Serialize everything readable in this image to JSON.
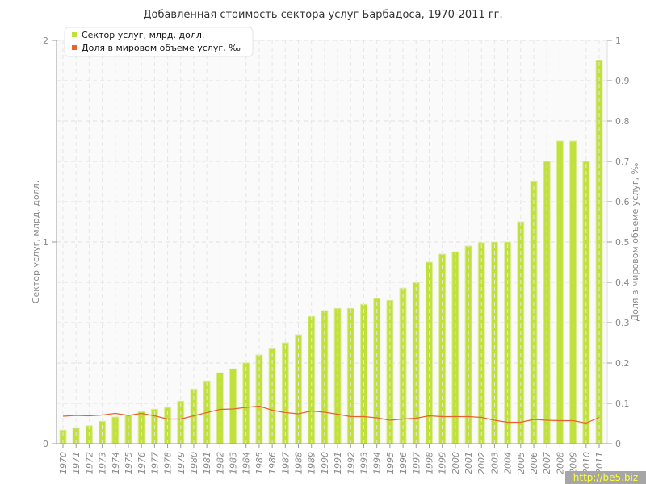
{
  "chart_data": {
    "type": "bar+line",
    "title": "Добавленная стоимость сектора услуг Барбадоса, 1970-2011 гг.",
    "ylabel_left": "Сектор услуг, млрд. долл.",
    "ylabel_right": "Доля в мировом объеме услуг, ‰",
    "ylim_left": [
      0,
      2
    ],
    "ylim_right": [
      0,
      1
    ],
    "yticks_left": [
      "0",
      "1",
      "2"
    ],
    "yticks_right": [
      "0",
      "0.1",
      "0.2",
      "0.3",
      "0.4",
      "0.5",
      "0.6",
      "0.7",
      "0.8",
      "0.9",
      "1"
    ],
    "grid": true,
    "legend_position": "top-left",
    "categories": [
      "1970",
      "1971",
      "1972",
      "1973",
      "1974",
      "1975",
      "1976",
      "1977",
      "1978",
      "1979",
      "1980",
      "1981",
      "1982",
      "1983",
      "1984",
      "1985",
      "1986",
      "1987",
      "1988",
      "1989",
      "1990",
      "1991",
      "1992",
      "1993",
      "1994",
      "1995",
      "1996",
      "1997",
      "1998",
      "1999",
      "2000",
      "2001",
      "2002",
      "2003",
      "2004",
      "2005",
      "2006",
      "2007",
      "2008",
      "2009",
      "2010",
      "2011"
    ],
    "series": [
      {
        "name": "Сектор услуг, млрд. долл.",
        "type": "bar",
        "axis": "left",
        "color": "#c2e03c",
        "values": [
          0.067,
          0.079,
          0.089,
          0.111,
          0.132,
          0.14,
          0.16,
          0.171,
          0.18,
          0.211,
          0.271,
          0.311,
          0.351,
          0.371,
          0.401,
          0.44,
          0.471,
          0.5,
          0.54,
          0.631,
          0.66,
          0.671,
          0.671,
          0.691,
          0.72,
          0.711,
          0.771,
          0.799,
          0.9,
          0.94,
          0.951,
          0.98,
          0.997,
          1.0,
          1.0,
          1.1,
          1.3,
          1.4,
          1.5,
          1.5,
          1.4,
          1.9
        ]
      },
      {
        "name": "Доля в мировом объеме услуг, ‰",
        "type": "line",
        "axis": "right",
        "color": "#e8622a",
        "values": [
          0.068,
          0.07,
          0.069,
          0.071,
          0.075,
          0.07,
          0.075,
          0.069,
          0.061,
          0.061,
          0.069,
          0.077,
          0.085,
          0.086,
          0.09,
          0.093,
          0.083,
          0.077,
          0.074,
          0.081,
          0.078,
          0.073,
          0.067,
          0.067,
          0.064,
          0.058,
          0.061,
          0.063,
          0.069,
          0.067,
          0.067,
          0.067,
          0.065,
          0.058,
          0.053,
          0.053,
          0.06,
          0.058,
          0.057,
          0.057,
          0.051,
          0.065
        ]
      }
    ]
  },
  "watermark": "http://be5.biz"
}
